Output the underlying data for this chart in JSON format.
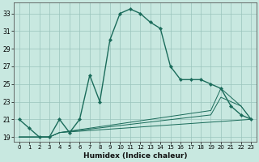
{
  "xlabel": "Humidex (Indice chaleur)",
  "bg_color": "#c8e8e0",
  "grid_color": "#99c4bc",
  "line_color": "#1a6b5a",
  "xlim": [
    -0.5,
    23.5
  ],
  "ylim": [
    18.5,
    34.2
  ],
  "xticks": [
    0,
    1,
    2,
    3,
    4,
    5,
    6,
    7,
    8,
    9,
    10,
    11,
    12,
    13,
    14,
    15,
    16,
    17,
    18,
    19,
    20,
    21,
    22,
    23
  ],
  "yticks": [
    19,
    21,
    23,
    25,
    27,
    29,
    31,
    33
  ],
  "series_main": {
    "x": [
      0,
      1,
      2,
      3,
      4,
      5,
      6,
      7,
      8,
      9,
      10,
      11,
      12,
      13,
      14,
      15,
      16,
      17,
      18,
      19,
      20,
      21,
      22,
      23
    ],
    "y": [
      21,
      20,
      19,
      19,
      21,
      19.5,
      21,
      26,
      23,
      30,
      33,
      33.5,
      33,
      32,
      31.3,
      27,
      25.5,
      25.5,
      25.5,
      25,
      24.5,
      22.5,
      21.5,
      21
    ],
    "markersize": 2.2,
    "linewidth": 1.0
  },
  "series_lower": [
    {
      "x": [
        0,
        3,
        4,
        23
      ],
      "y": [
        19,
        19,
        19.5,
        21
      ],
      "linewidth": 0.7
    },
    {
      "x": [
        0,
        3,
        4,
        19,
        20,
        22,
        23
      ],
      "y": [
        19,
        19,
        19.5,
        21.5,
        23.5,
        22.5,
        21
      ],
      "linewidth": 0.7
    },
    {
      "x": [
        0,
        3,
        4,
        19,
        20,
        22,
        23
      ],
      "y": [
        19,
        19,
        19.5,
        22,
        24.5,
        22.5,
        21
      ],
      "linewidth": 0.7
    }
  ]
}
